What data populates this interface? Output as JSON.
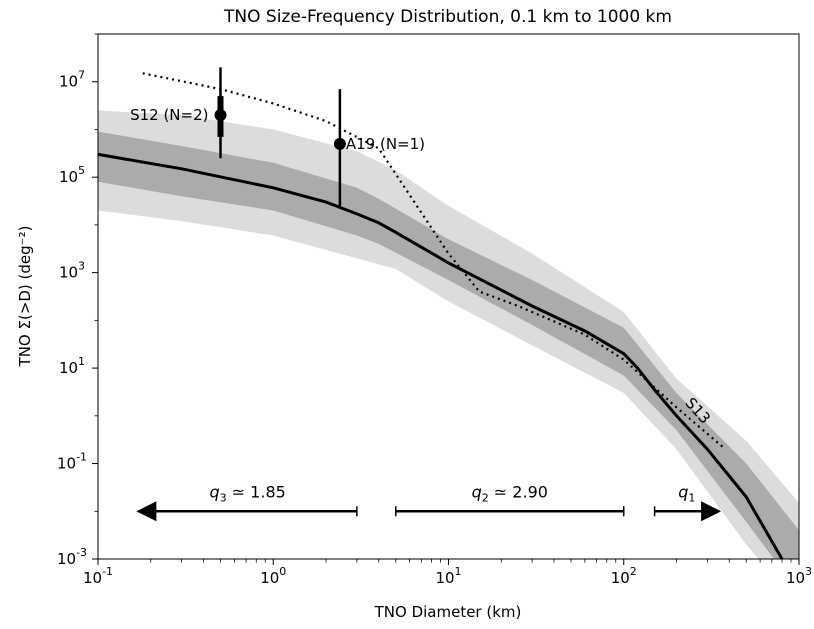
{
  "chart_data": {
    "type": "line",
    "title": "TNO Size-Frequency Distribution, 0.1 km to 1000 km",
    "xlabel": "TNO Diameter (km)",
    "ylabel": "TNO Σ(>D) (deg⁻²)",
    "xscale": "log",
    "yscale": "log",
    "xlim": [
      0.1,
      1000
    ],
    "ylim": [
      0.001,
      100000000
    ],
    "grid": false,
    "x_ticks": [
      {
        "value": 0.1,
        "base": "10",
        "exp": "-1"
      },
      {
        "value": 1,
        "base": "10",
        "exp": "0"
      },
      {
        "value": 10,
        "base": "10",
        "exp": "1"
      },
      {
        "value": 100,
        "base": "10",
        "exp": "2"
      },
      {
        "value": 1000,
        "base": "10",
        "exp": "3"
      }
    ],
    "y_ticks": [
      {
        "value": 0.001,
        "base": "10",
        "exp": "-3"
      },
      {
        "value": 0.1,
        "base": "10",
        "exp": "-1"
      },
      {
        "value": 10,
        "base": "10",
        "exp": "1"
      },
      {
        "value": 1000,
        "base": "10",
        "exp": "3"
      },
      {
        "value": 100000,
        "base": "10",
        "exp": "5"
      },
      {
        "value": 10000000,
        "base": "10",
        "exp": "7"
      }
    ],
    "model": {
      "x": [
        0.1,
        0.3,
        1,
        2,
        3,
        4,
        5,
        10,
        30,
        60,
        100,
        120,
        150,
        200,
        300,
        500,
        800
      ],
      "y": [
        300000,
        150000,
        60000,
        30000,
        17000,
        11000,
        7000,
        1600,
        200,
        60,
        20,
        10,
        3.5,
        1,
        0.2,
        0.02,
        0.001
      ]
    },
    "band_inner": {
      "x": [
        0.1,
        0.3,
        1,
        3,
        4,
        10,
        30,
        100,
        200,
        500,
        1000
      ],
      "upper": [
        900000,
        450000,
        200000,
        60000,
        35000,
        5000,
        700,
        70,
        3,
        0.1,
        0.004
      ],
      "lower": [
        80000,
        40000,
        20000,
        6000,
        4000,
        700,
        80,
        7,
        0.5,
        0.006,
        0.0002
      ]
    },
    "band_outer": {
      "x": [
        0.1,
        0.3,
        1,
        3,
        5,
        10,
        30,
        100,
        200,
        500,
        1000
      ],
      "upper": [
        2500000,
        2000000,
        1000000,
        350000,
        140000,
        25000,
        2500,
        150,
        6,
        0.3,
        0.015
      ],
      "lower": [
        20000,
        12000,
        6000,
        2000,
        1200,
        250,
        30,
        3,
        0.2,
        0.002,
        0.0001
      ]
    },
    "reference_curve": {
      "label": "S13",
      "x": [
        0.18,
        0.5,
        1,
        2,
        4,
        10,
        15,
        25,
        60,
        100,
        200,
        380
      ],
      "y": [
        15000000,
        7000000,
        3500000,
        1500000,
        400000,
        2500,
        400,
        200,
        50,
        15,
        1.5,
        0.2
      ]
    },
    "points": [
      {
        "label": "S12 (N=2)",
        "x": 0.5,
        "y": 2000000,
        "y_low": 250000,
        "y_high": 20000000,
        "y_low_inner": 700000,
        "y_high_inner": 5000000
      },
      {
        "label": "A19 (N=1)",
        "x": 2.4,
        "y": 500000,
        "y_low": 25000,
        "y_high": 7000000
      }
    ],
    "slope_ranges": [
      {
        "label_sym": "q",
        "label_sub": "3",
        "label_val": " ≃ 1.85",
        "x_from": 3,
        "x_to": 0.17,
        "y": 0.01,
        "arrow": "left"
      },
      {
        "label_sym": "q",
        "label_sub": "2",
        "label_val": " ≃ 2.90",
        "x_from": 5,
        "x_to": 100,
        "y": 0.01,
        "arrow": "none"
      },
      {
        "label_sym": "q",
        "label_sub": "1",
        "label_val": "",
        "x_from": 150,
        "x_to": 350,
        "y": 0.01,
        "arrow": "right"
      }
    ],
    "colors": {
      "band_outer": "#dcdcdc",
      "band_inner": "#ababab",
      "model": "#000000",
      "reference": "#000000"
    }
  }
}
